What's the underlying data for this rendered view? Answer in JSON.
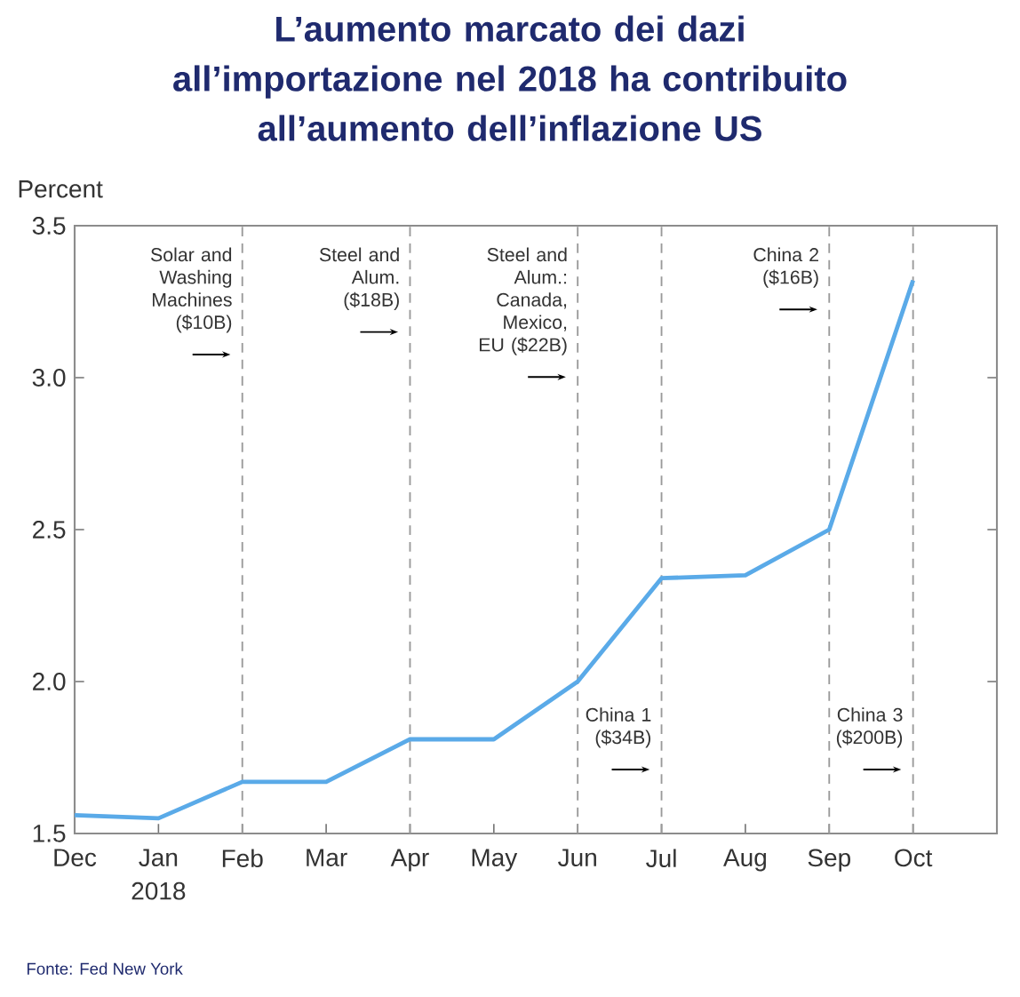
{
  "chart_data": {
    "type": "line",
    "title": "L’aumento marcato dei dazi all’importazione nel 2018 ha contribuito all’aumento dell’inflazione US",
    "ylabel": "Percent",
    "categories": [
      "Dec",
      "Jan",
      "Feb",
      "Mar",
      "Apr",
      "May",
      "Jun",
      "Jul",
      "Aug",
      "Sep",
      "Oct"
    ],
    "series": [
      {
        "color": "#5aaae8",
        "values": [
          1.56,
          1.55,
          1.67,
          1.67,
          1.81,
          1.81,
          2.0,
          2.34,
          2.35,
          2.5,
          3.32
        ]
      }
    ],
    "ylim": [
      1.5,
      3.5
    ],
    "yticks": [
      1.5,
      {
        "value": 2.0,
        "label": "2.0"
      },
      2.5,
      {
        "value": 3.0,
        "label": "3.0"
      },
      3.5
    ],
    "ref_lines": [
      {
        "axis": "x",
        "value": "Feb",
        "label": "Solar and Washing Machines ($10B)",
        "color": "#9a9a9a",
        "line_style": "dashed"
      },
      {
        "axis": "x",
        "value": "Apr",
        "label": "Steel and Alum. ($18B)",
        "color": "#9a9a9a",
        "line_style": "dashed"
      },
      {
        "axis": "x",
        "value": "Jun",
        "label": "Steel and Alum.: Canada, Mexico, EU ($22B)",
        "color": "#9a9a9a",
        "line_style": "dashed"
      },
      {
        "axis": "x",
        "value": "Jul",
        "label": "China 1 ($34B)",
        "color": "#9a9a9a",
        "line_style": "dashed"
      },
      {
        "axis": "x",
        "value": "Sep",
        "label": "China 2 ($16B)",
        "color": "#9a9a9a",
        "line_style": "dashed"
      },
      {
        "axis": "x",
        "value": "Oct",
        "label": "China 3 ($200B)",
        "color": "#9a9a9a",
        "line_style": "dashed"
      }
    ],
    "annotations": [
      "2018",
      "Fonte: Fed New York"
    ],
    "grid": false,
    "marker": "none",
    "line_style": "solid"
  }
}
